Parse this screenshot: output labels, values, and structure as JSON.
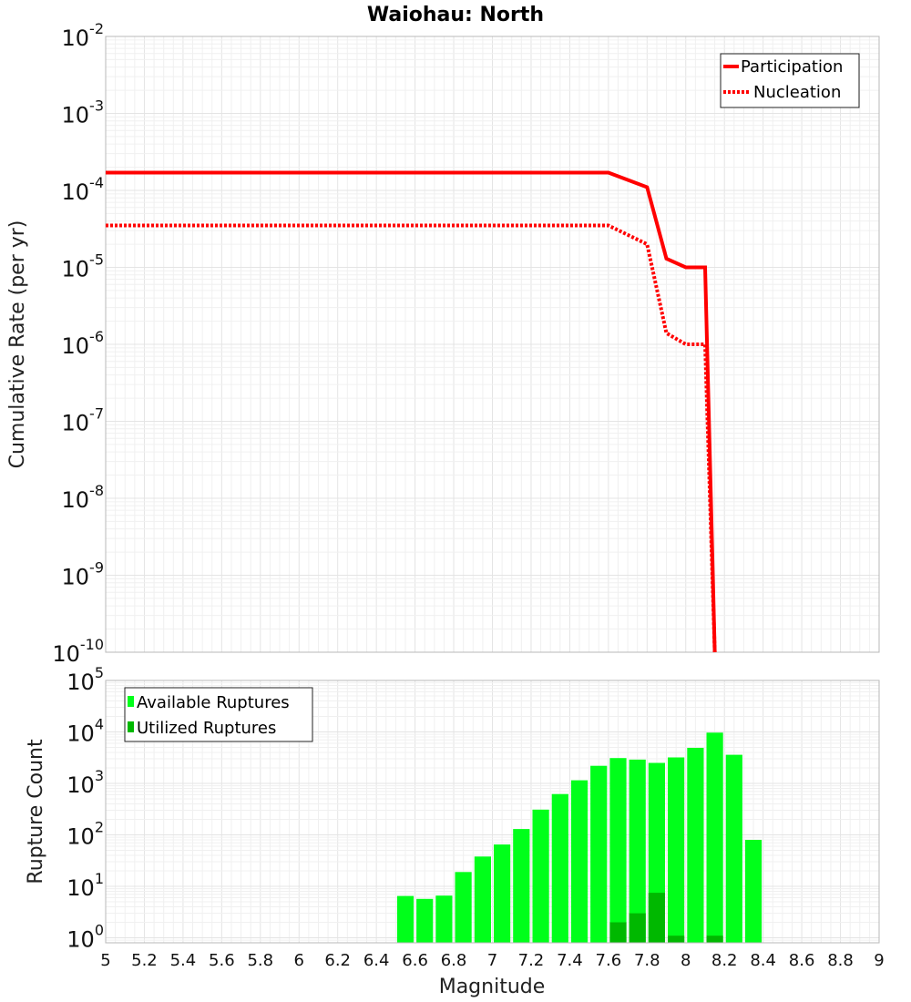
{
  "title": "Waiohau: North",
  "x_axis": {
    "label": "Magnitude",
    "range": [
      5,
      9
    ],
    "ticks": [
      "5",
      "5.2",
      "5.4",
      "5.6",
      "5.8",
      "6",
      "6.2",
      "6.4",
      "6.6",
      "6.8",
      "7",
      "7.2",
      "7.4",
      "7.6",
      "7.8",
      "8",
      "8.2",
      "8.4",
      "8.6",
      "8.8",
      "9"
    ]
  },
  "chart_data": [
    {
      "type": "line",
      "ylabel": "Cumulative Rate (per yr)",
      "yscale": "log",
      "ylim": [
        1e-10,
        0.01
      ],
      "y_tick_exponents": [
        -10,
        -9,
        -8,
        -7,
        -6,
        -5,
        -4,
        -3,
        -2
      ],
      "legend_position": "top-right",
      "grid": true,
      "series": [
        {
          "name": "Participation",
          "style": "solid",
          "color": "#ff0000",
          "points": [
            [
              5.0,
              0.00017
            ],
            [
              7.6,
              0.00017
            ],
            [
              7.8,
              0.00011
            ],
            [
              7.9,
              1.3e-05
            ],
            [
              8.0,
              1e-05
            ],
            [
              8.1,
              1e-05
            ],
            [
              8.15,
              1e-10
            ]
          ]
        },
        {
          "name": "Nucleation",
          "style": "dotted",
          "color": "#ff0000",
          "points": [
            [
              5.0,
              3.5e-05
            ],
            [
              7.6,
              3.5e-05
            ],
            [
              7.8,
              2e-05
            ],
            [
              7.9,
              1.4e-06
            ],
            [
              8.0,
              1e-06
            ],
            [
              8.1,
              1e-06
            ],
            [
              8.15,
              1e-10
            ]
          ]
        }
      ]
    },
    {
      "type": "bar",
      "ylabel": "Rupture Count",
      "yscale": "log",
      "ylim": [
        0.8,
        100000
      ],
      "y_tick_exponents": [
        0,
        1,
        2,
        3,
        4,
        5
      ],
      "legend_position": "top-left",
      "grid": true,
      "categories": [
        6.55,
        6.65,
        6.75,
        6.85,
        6.95,
        7.05,
        7.15,
        7.25,
        7.35,
        7.45,
        7.55,
        7.65,
        7.75,
        7.85,
        7.95,
        8.05,
        8.15,
        8.25,
        8.35
      ],
      "series": [
        {
          "name": "Available Ruptures",
          "color": "#00ff1a",
          "values": [
            6.5,
            5.7,
            6.6,
            19,
            38,
            65,
            130,
            310,
            620,
            1150,
            2200,
            3100,
            2900,
            2500,
            3200,
            4900,
            9700,
            3600,
            80
          ]
        },
        {
          "name": "Utilized Ruptures",
          "color": "#00b800",
          "values": [
            0,
            0,
            0,
            0,
            0,
            0,
            0,
            0,
            0,
            0,
            0,
            2,
            3,
            7.5,
            1.1,
            0,
            1.1,
            0,
            0
          ]
        }
      ]
    }
  ]
}
